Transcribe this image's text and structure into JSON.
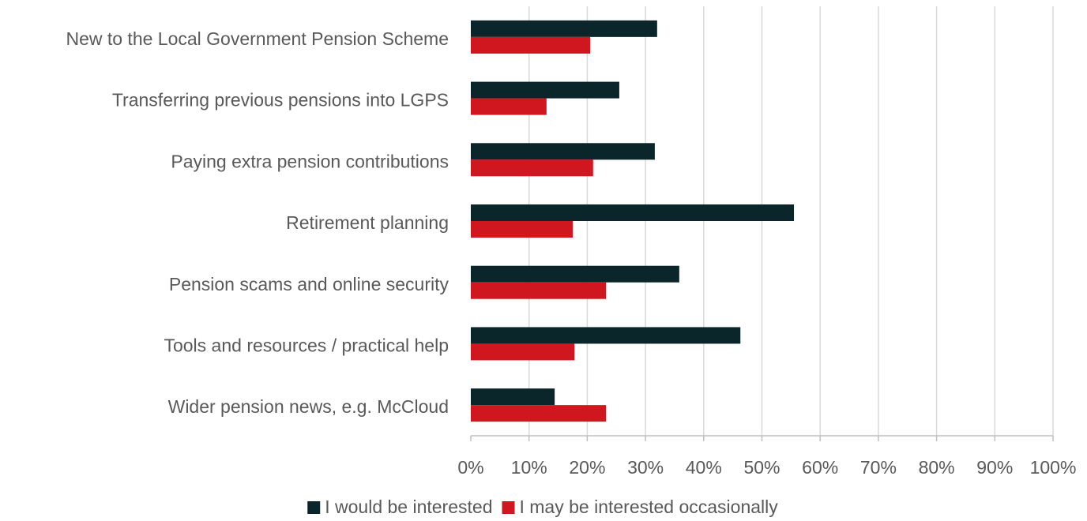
{
  "chart_data": {
    "type": "barh",
    "categories": [
      "New to the Local Government Pension Scheme",
      "Transferring previous pensions into LGPS",
      "Paying extra pension contributions",
      "Retirement planning",
      "Pension scams and online security",
      "Tools and resources / practical help",
      "Wider pension news, e.g. McCloud"
    ],
    "series": [
      {
        "name": "I would be interested",
        "color": "#0b262b",
        "values": [
          32,
          25.5,
          31.6,
          55.5,
          35.8,
          46.3,
          14.4
        ]
      },
      {
        "name": "I may be interested occasionally",
        "color": "#d0161f",
        "values": [
          20.5,
          13,
          21,
          17.5,
          23.2,
          17.8,
          23.2
        ]
      }
    ],
    "xlim": [
      0,
      100
    ],
    "xticks": [
      {
        "value": 0,
        "label": "0%"
      },
      {
        "value": 10,
        "label": "10%"
      },
      {
        "value": 20,
        "label": "20%"
      },
      {
        "value": 30,
        "label": "30%"
      },
      {
        "value": 40,
        "label": "40%"
      },
      {
        "value": 50,
        "label": "50%"
      },
      {
        "value": 60,
        "label": "60%"
      },
      {
        "value": 70,
        "label": "70%"
      },
      {
        "value": 80,
        "label": "80%"
      },
      {
        "value": 90,
        "label": "90%"
      },
      {
        "value": 100,
        "label": "100%"
      }
    ],
    "grid": true,
    "legend": "bottom"
  }
}
